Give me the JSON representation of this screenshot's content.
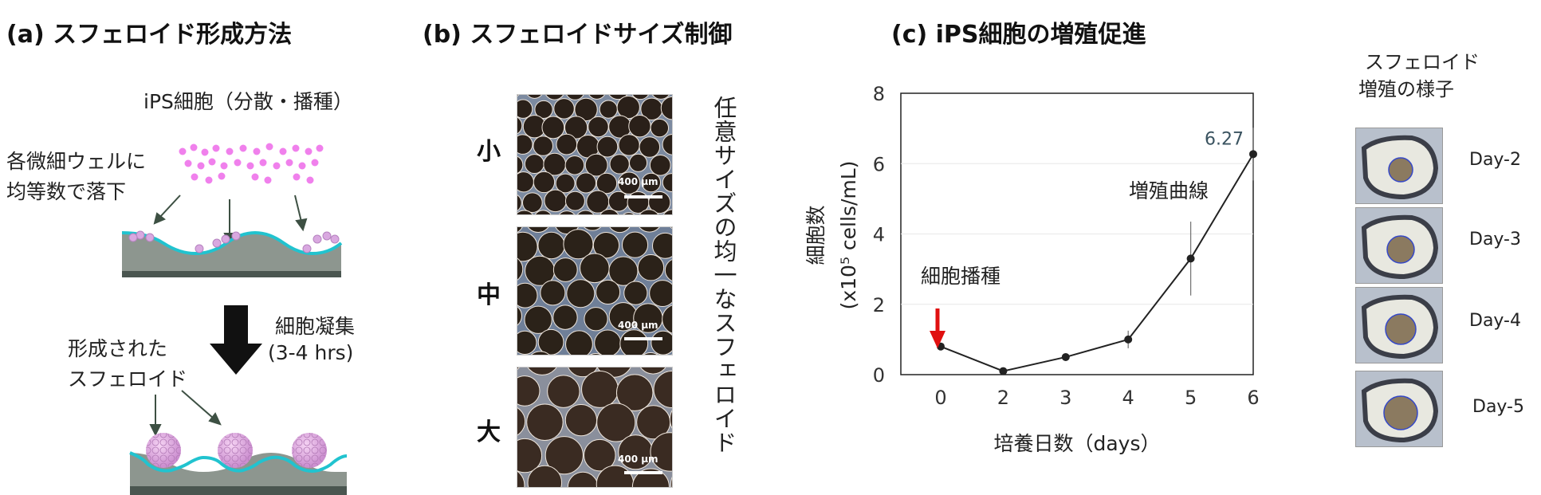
{
  "panel_a": {
    "title": "(a) スフェロイド形成方法",
    "seeding_label": "iPS細胞（分散・播種）",
    "drop_label_line1": "各微細ウェルに",
    "drop_label_line2": "均等数で落下",
    "aggregation_label": "細胞凝集",
    "aggregation_time": "(3-4 hrs)",
    "formed_label_line1": "形成された",
    "formed_label_line2": "スフェロイド"
  },
  "panel_b": {
    "title": "(b)  スフェロイドサイズ制御",
    "sizes": [
      "小",
      "中",
      "大"
    ],
    "scale_bar": "400 μm",
    "vertical_caption": "任意サイズの均一なスフェロイド"
  },
  "panel_c": {
    "title": "(c) iPS細胞の増殖促進",
    "thumb_title_line1": "スフェロイド",
    "thumb_title_line2": "増殖の様子",
    "days": [
      "Day-2",
      "Day-3",
      "Day-4",
      "Day-5"
    ],
    "seeding_annotation": "細胞播種",
    "curve_annotation": "増殖曲線",
    "peak_label": "6.27",
    "accent_colors": {
      "arrow": "#e01010",
      "line": "#222222"
    }
  },
  "chart_data": {
    "type": "line",
    "xlabel": "培養日数（days）",
    "ylabel_line1": "細胞数",
    "ylabel_line2": "(x10⁵ cells/mL)",
    "x_categories": [
      "0",
      "2",
      "3",
      "4",
      "5",
      "6"
    ],
    "yticks": [
      "0",
      "2",
      "4",
      "6",
      "8"
    ],
    "ylim": [
      0,
      8
    ],
    "grid": true,
    "series": [
      {
        "values": [
          0.8,
          0.1,
          0.5,
          1.0,
          3.3,
          6.27
        ],
        "errors": [
          0.0,
          0.0,
          0.1,
          0.25,
          1.05,
          0.75
        ]
      }
    ]
  }
}
